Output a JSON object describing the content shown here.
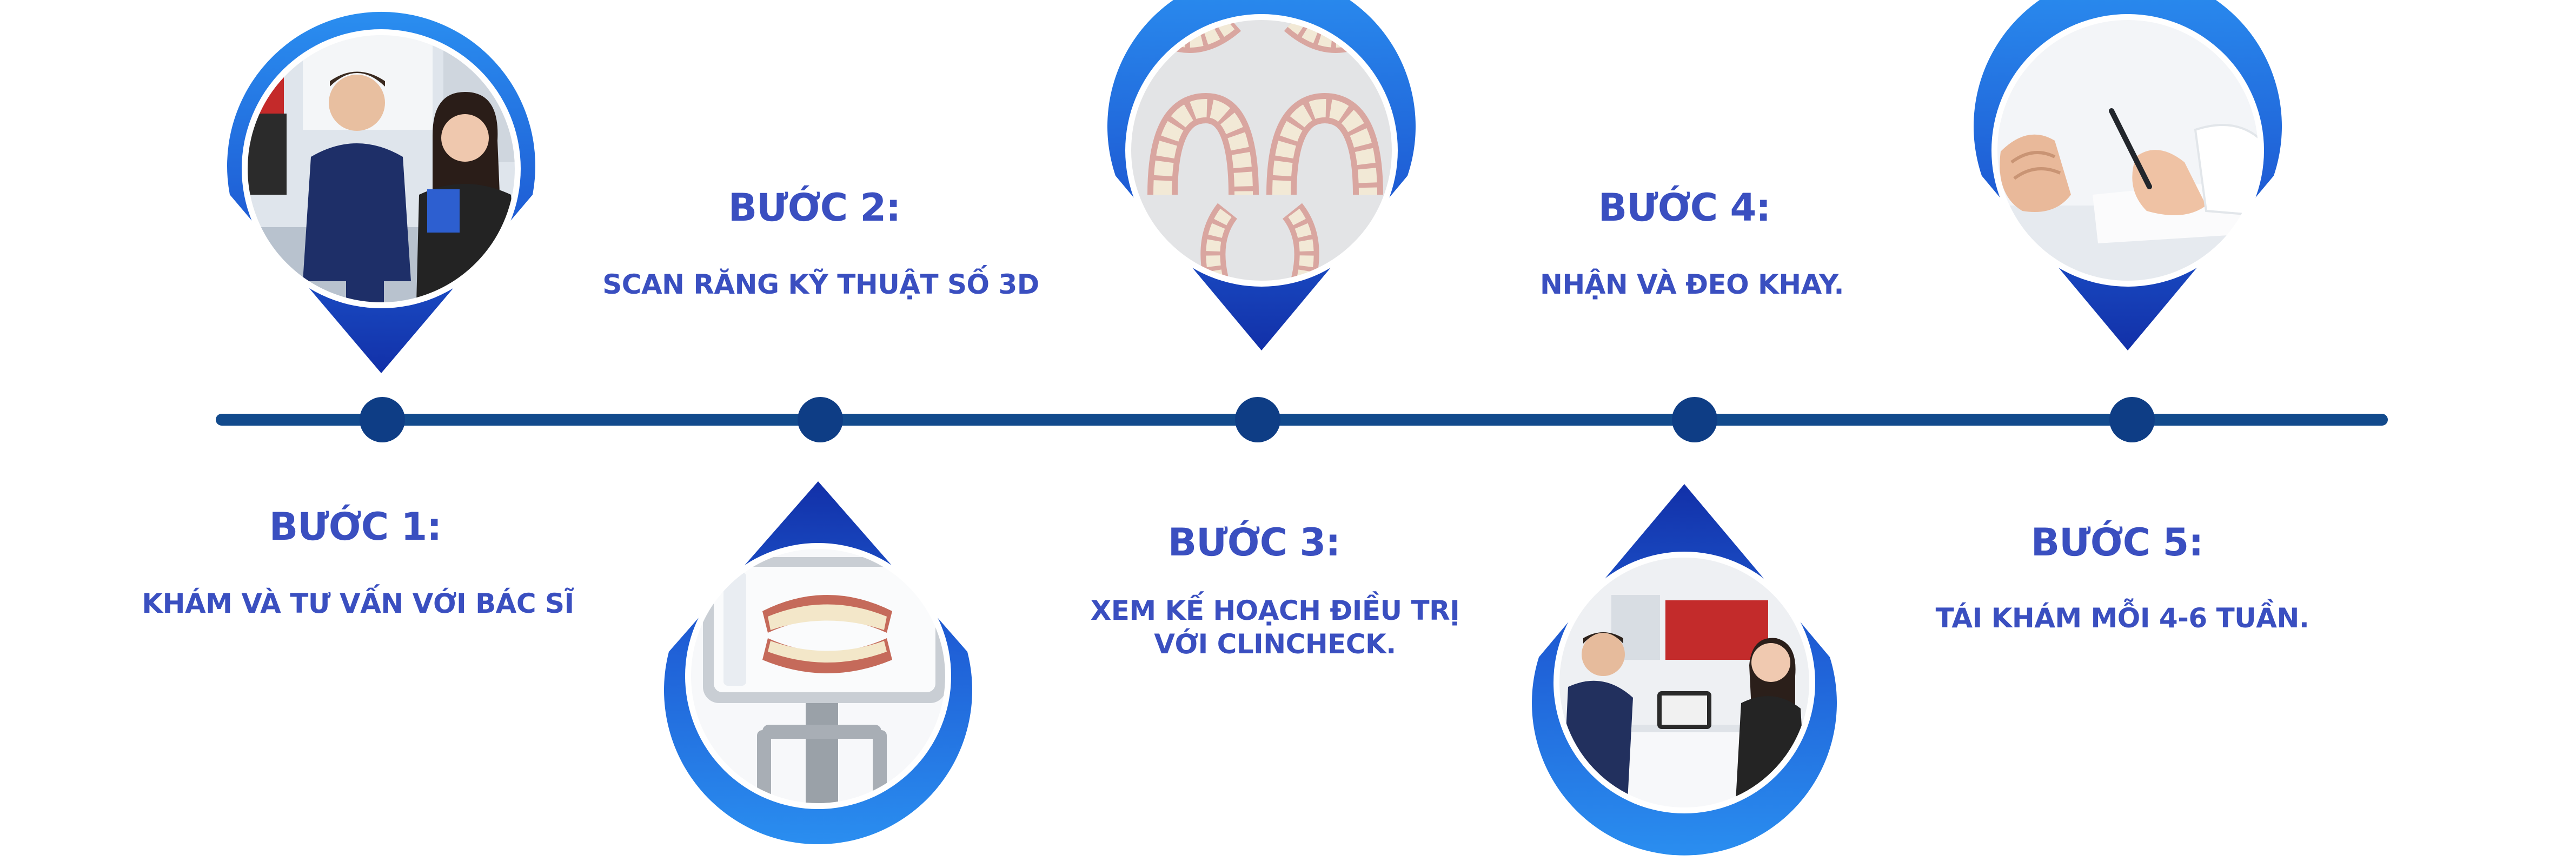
{
  "colors": {
    "title": "#3a4fc0",
    "line": "#124a8c",
    "dot": "#0e3d85",
    "pin_light": "#2a86e8",
    "pin_dark": "#1538b5"
  },
  "steps": [
    {
      "title": "BƯỚC 1:",
      "desc": "KHÁM VÀ TƯ VẤN VỚI BÁC SĨ",
      "photo_icon": "doctor-consultation-photo"
    },
    {
      "title": "BƯỚC 2:",
      "desc": "SCAN RĂNG KỸ THUẬT SỐ 3D",
      "photo_icon": "3d-scanner-screen-photo"
    },
    {
      "title": "BƯỚC 3:",
      "desc": "XEM KẾ HOẠCH ĐIỀU TRỊ",
      "desc2": "VỚI CLINCHECK.",
      "photo_icon": "dental-arch-model-photo"
    },
    {
      "title": "BƯỚC 4:",
      "desc": "NHẬN VÀ ĐEO KHAY.",
      "photo_icon": "clinic-meeting-photo"
    },
    {
      "title": "BƯỚC 5:",
      "desc": "TÁI KHÁM MỖI 4-6 TUẦN.",
      "photo_icon": "writing-hand-photo"
    }
  ]
}
